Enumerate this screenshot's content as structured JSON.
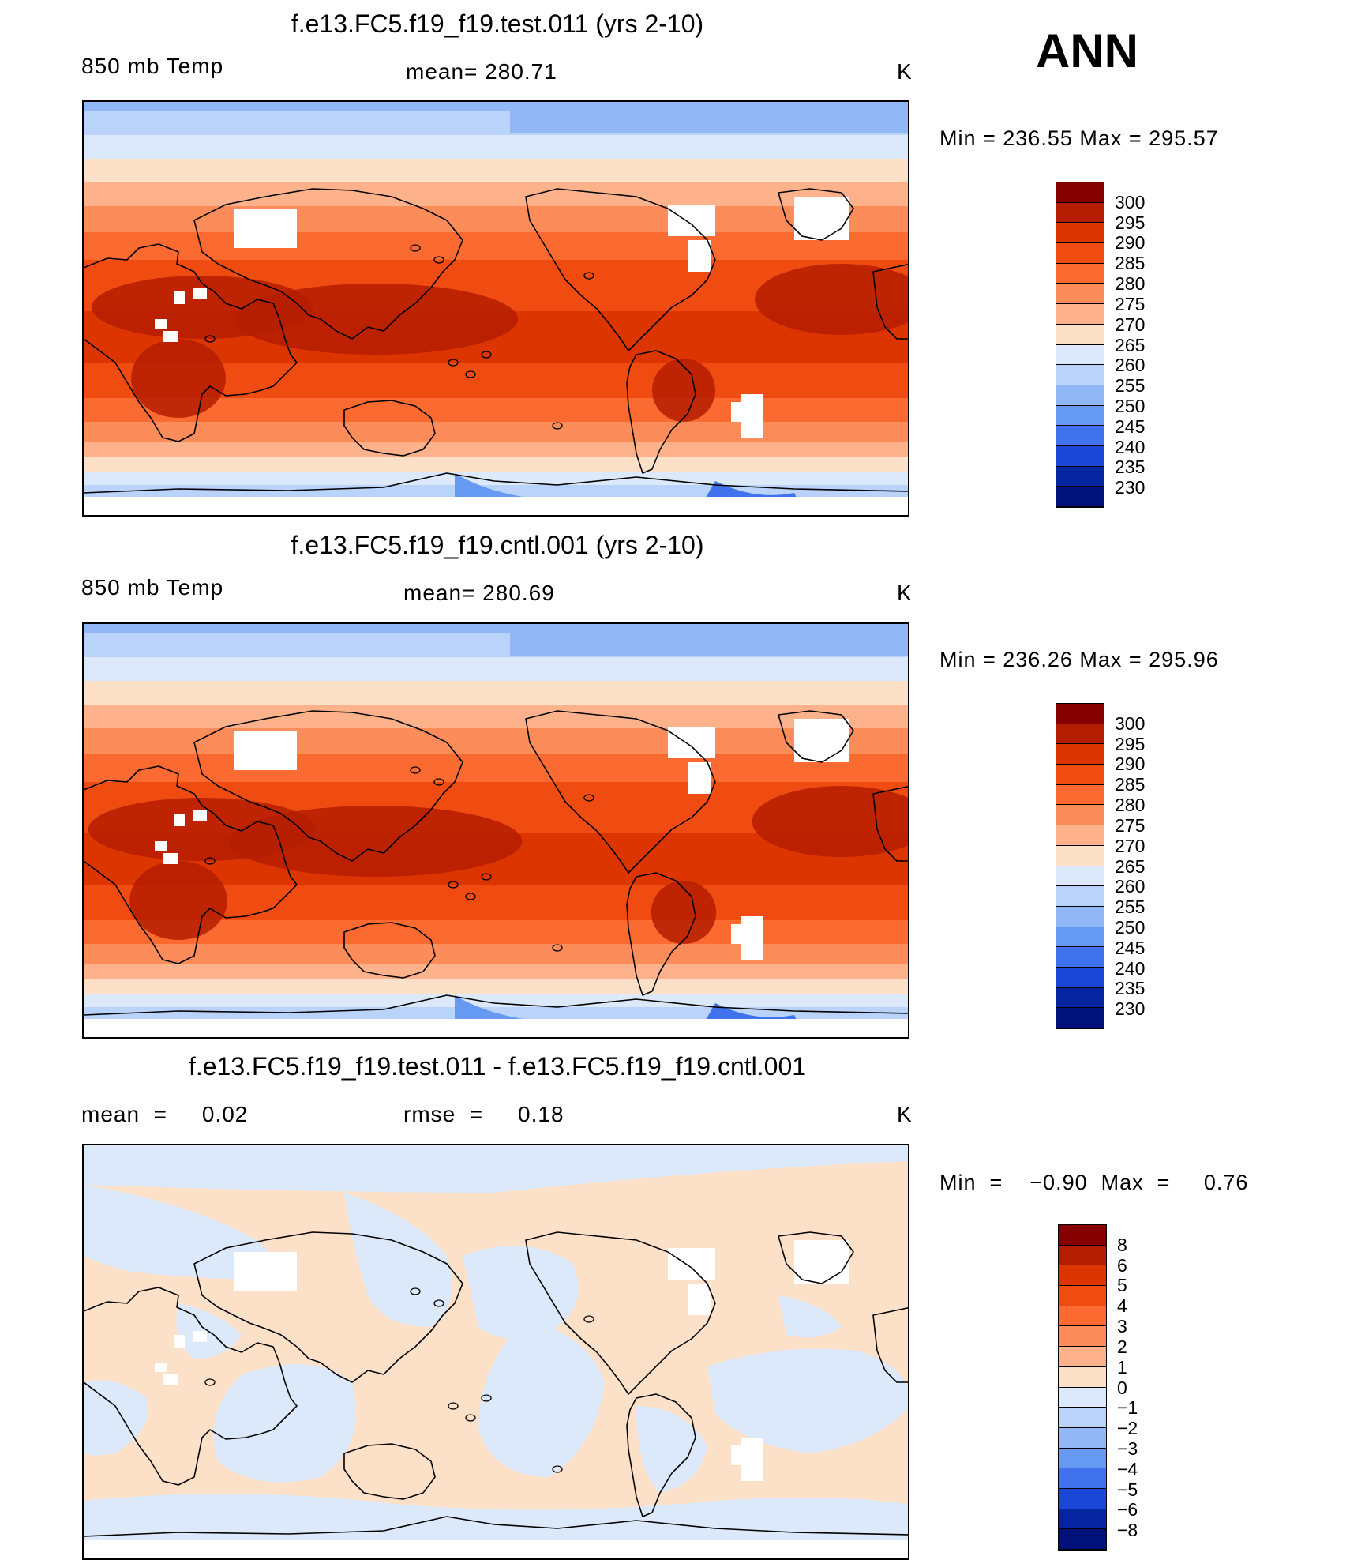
{
  "season": "ANN",
  "units": "K",
  "panels": [
    {
      "id": "test",
      "title": "f.e13.FC5.f19_f19.test.011 (yrs 2-10)",
      "variable": "850 mb Temp",
      "stat_text": "mean=  280.71",
      "units": "K",
      "minmax": "Min  =  236.55  Max  =  295.57",
      "colorbar_labels": [
        "300",
        "295",
        "290",
        "285",
        "280",
        "275",
        "270",
        "265",
        "260",
        "255",
        "250",
        "245",
        "240",
        "235",
        "230"
      ]
    },
    {
      "id": "cntl",
      "title": "f.e13.FC5.f19_f19.cntl.001 (yrs 2-10)",
      "variable": "850 mb Temp",
      "stat_text": "mean=  280.69",
      "units": "K",
      "minmax": "Min  =  236.26  Max  =  295.96",
      "colorbar_labels": [
        "300",
        "295",
        "290",
        "285",
        "280",
        "275",
        "270",
        "265",
        "260",
        "255",
        "250",
        "245",
        "240",
        "235",
        "230"
      ]
    },
    {
      "id": "diff",
      "title": "f.e13.FC5.f19_f19.test.011 - f.e13.FC5.f19_f19.cntl.001",
      "mean_text": "mean  =     0.02",
      "rmse_text": "rmse  =     0.18",
      "units": "K",
      "minmax": "Min  =    −0.90  Max  =     0.76",
      "colorbar_labels": [
        "8",
        "6",
        "5",
        "4",
        "3",
        "2",
        "1",
        "0",
        "−1",
        "−2",
        "−3",
        "−4",
        "−5",
        "−6",
        "−8"
      ]
    }
  ],
  "colors": {
    "colorbar": [
      "#870000",
      "#b51d00",
      "#dc3500",
      "#f04b10",
      "#fb6a30",
      "#fc8c5a",
      "#fdb28c",
      "#fde0c8",
      "#dbe9fb",
      "#b9d3fa",
      "#91b7f7",
      "#6699f2",
      "#3f72ec",
      "#1a47d5",
      "#0525a0",
      "#00127a"
    ],
    "land_outline": "#000000",
    "missing": "#ffffff"
  }
}
